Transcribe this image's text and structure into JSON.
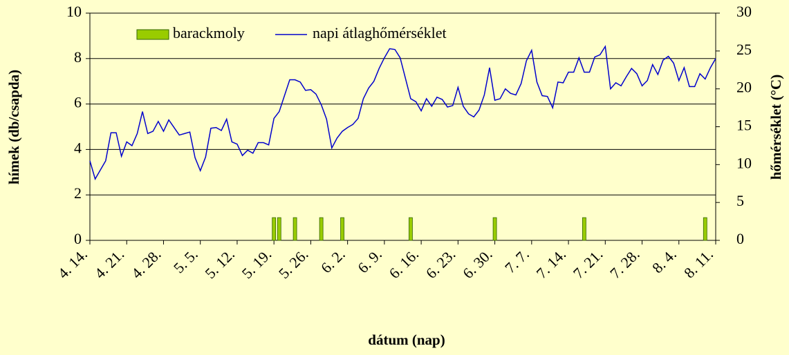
{
  "chart_data": {
    "type": "combo",
    "x_label": "dátum (nap)",
    "y_label": "hímek (db/csapda)",
    "y2_label": "hőmérséklet (°C)",
    "categories": [
      "4. 14.",
      null,
      null,
      null,
      null,
      null,
      null,
      "4. 21.",
      null,
      null,
      null,
      null,
      null,
      null,
      "4. 28.",
      null,
      null,
      null,
      null,
      null,
      null,
      "5. 5.",
      null,
      null,
      null,
      null,
      null,
      null,
      "5. 12.",
      null,
      null,
      null,
      null,
      null,
      null,
      "5. 19.",
      null,
      null,
      null,
      null,
      null,
      null,
      "5. 26.",
      null,
      null,
      null,
      null,
      null,
      null,
      "6. 2.",
      null,
      null,
      null,
      null,
      null,
      null,
      "6. 9.",
      null,
      null,
      null,
      null,
      null,
      null,
      "6. 16.",
      null,
      null,
      null,
      null,
      null,
      null,
      "6. 23.",
      null,
      null,
      null,
      null,
      null,
      null,
      "6. 30.",
      null,
      null,
      null,
      null,
      null,
      null,
      "7. 7.",
      null,
      null,
      null,
      null,
      null,
      null,
      "7. 14.",
      null,
      null,
      null,
      null,
      null,
      null,
      "7. 21.",
      null,
      null,
      null,
      null,
      null,
      null,
      "7. 28.",
      null,
      null,
      null,
      null,
      null,
      null,
      "8. 4.",
      null,
      null,
      null,
      null,
      null,
      null,
      "8. 11."
    ],
    "series": [
      {
        "name": "barackmoly",
        "type": "bar",
        "color": "#99cc00",
        "axis": "y",
        "values": [
          0,
          0,
          0,
          0,
          0,
          0,
          0,
          0,
          0,
          0,
          0,
          0,
          0,
          0,
          0,
          0,
          0,
          0,
          0,
          0,
          0,
          0,
          0,
          0,
          0,
          0,
          0,
          0,
          0,
          0,
          0,
          0,
          0,
          0,
          0,
          1,
          1,
          0,
          0,
          1,
          0,
          0,
          0,
          0,
          1,
          0,
          0,
          0,
          1,
          0,
          0,
          0,
          0,
          0,
          0,
          0,
          0,
          0,
          0,
          0,
          0,
          1,
          0,
          0,
          0,
          0,
          0,
          0,
          0,
          0,
          0,
          0,
          0,
          0,
          0,
          0,
          0,
          1,
          0,
          0,
          0,
          0,
          0,
          0,
          0,
          0,
          0,
          0,
          0,
          0,
          0,
          0,
          0,
          0,
          1,
          0,
          0,
          0,
          0,
          0,
          0,
          0,
          0,
          0,
          0,
          0,
          0,
          0,
          0,
          0,
          0,
          0,
          0,
          0,
          0,
          0,
          0,
          1,
          0,
          0
        ]
      },
      {
        "name": "napi átlaghőmérséklet",
        "type": "line",
        "color": "#0000cc",
        "axis": "y2",
        "values": [
          10.5,
          8.1,
          9.3,
          10.5,
          14.2,
          14.2,
          11.1,
          13.0,
          12.5,
          14.1,
          17.0,
          14.1,
          14.4,
          15.7,
          14.4,
          15.9,
          14.9,
          13.9,
          14.1,
          14.3,
          10.9,
          9.2,
          11.0,
          14.8,
          14.9,
          14.5,
          16.0,
          13.0,
          12.7,
          11.2,
          11.9,
          11.5,
          12.9,
          12.9,
          12.6,
          16.1,
          17.0,
          19.1,
          21.2,
          21.2,
          20.9,
          19.8,
          19.9,
          19.3,
          17.9,
          16.0,
          12.2,
          13.5,
          14.4,
          14.9,
          15.3,
          16.1,
          18.7,
          20.1,
          21.0,
          22.7,
          24.1,
          25.3,
          25.2,
          24.1,
          21.4,
          18.7,
          18.3,
          17.1,
          18.7,
          17.7,
          18.9,
          18.6,
          17.6,
          17.8,
          20.2,
          17.7,
          16.7,
          16.3,
          17.2,
          19.2,
          22.8,
          18.5,
          18.7,
          20.0,
          19.4,
          19.2,
          20.7,
          23.7,
          25.1,
          20.9,
          19.1,
          19.0,
          17.5,
          20.9,
          20.8,
          22.2,
          22.2,
          24.1,
          22.2,
          22.2,
          24.2,
          24.5,
          25.6,
          20.0,
          20.8,
          20.4,
          21.6,
          22.7,
          22.0,
          20.4,
          21.1,
          23.2,
          21.9,
          23.8,
          24.3,
          23.4,
          21.1,
          22.8,
          20.3,
          20.3,
          22.0,
          21.3,
          22.8,
          24.0
        ]
      }
    ],
    "ylim": [
      0,
      10
    ],
    "yticks": [
      0,
      2,
      4,
      6,
      8,
      10
    ],
    "y2lim": [
      0,
      30
    ],
    "y2ticks": [
      0,
      5,
      10,
      15,
      20,
      25,
      30
    ],
    "grid": true,
    "legend": "top"
  }
}
